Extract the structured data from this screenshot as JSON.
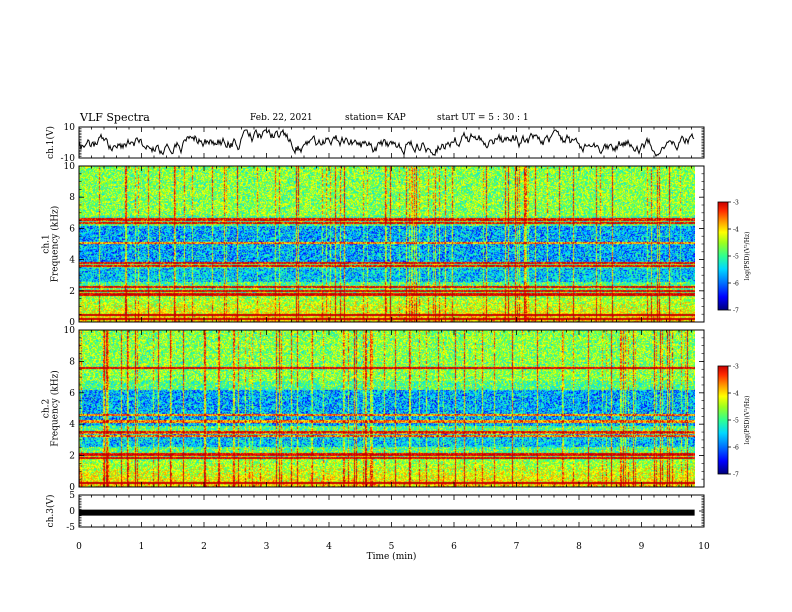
{
  "header": {
    "title": "VLF Spectra",
    "date": "Feb. 22, 2021",
    "station": "station= KAP",
    "start": "start  UT =  5 : 30 : 1"
  },
  "colors": {
    "colormap": [
      "#00007a",
      "#0000ff",
      "#0070ff",
      "#00d8ff",
      "#30ff90",
      "#9aff20",
      "#ffff00",
      "#ff9a00",
      "#ff2a00",
      "#c80000"
    ],
    "axis": "#000000"
  },
  "chart_data": [
    {
      "type": "line",
      "panel": "ch1-waveform",
      "ylabel": "ch.1(V)",
      "ylim": [
        -10,
        10
      ],
      "yticks": [
        "10",
        "-10"
      ],
      "xlim": [
        0,
        10
      ],
      "series": [
        {
          "values_description_free": true,
          "x_end": 9.85
        }
      ]
    },
    {
      "type": "heatmap",
      "panel": "ch1-spectrogram",
      "ylabel": "ch.1\nFrequency (kHz)",
      "ylabel_line1": "ch.1",
      "ylabel_line2": "Frequency (kHz)",
      "ylim": [
        0,
        10
      ],
      "yticks": [
        "0",
        "2",
        "4",
        "6",
        "8",
        "10"
      ],
      "xlim": [
        0,
        10
      ],
      "x_end": 9.85,
      "bands_khz": [
        0.2,
        0.5,
        1.8,
        2.0,
        2.3,
        3.6,
        3.8,
        5.1,
        6.4,
        6.6
      ],
      "colorbar": {
        "label": "log(PSD)(V²/Hz)",
        "ticks": [
          "-3",
          "-4",
          "-5",
          "-6",
          "-7"
        ],
        "range": [
          -7,
          -3
        ]
      }
    },
    {
      "type": "heatmap",
      "panel": "ch2-spectrogram",
      "ylabel": "ch.2\nFrequency (kHz)",
      "ylabel_line1": "ch.2",
      "ylabel_line2": "Frequency (kHz)",
      "ylim": [
        0,
        10
      ],
      "yticks": [
        "0",
        "2",
        "4",
        "6",
        "8",
        "10"
      ],
      "xlim": [
        0,
        10
      ],
      "x_end": 9.85,
      "bands_khz": [
        0.3,
        1.9,
        2.1,
        3.3,
        3.5,
        4.2,
        4.6,
        7.6
      ],
      "colorbar": {
        "label": "log(PSD)(V²/Hz)",
        "ticks": [
          "-3",
          "-4",
          "-5",
          "-6",
          "-7"
        ],
        "range": [
          -7,
          -3
        ]
      }
    },
    {
      "type": "line",
      "panel": "ch3-waveform",
      "ylabel": "ch.3(V)",
      "ylim": [
        -5,
        5
      ],
      "yticks": [
        "5",
        "0",
        "-5"
      ],
      "xlim": [
        0,
        10
      ],
      "series": [
        {
          "value": -0.5,
          "x_end": 9.85
        }
      ]
    }
  ],
  "xaxis": {
    "label": "Time (min)",
    "ticks": [
      "0",
      "1",
      "2",
      "3",
      "4",
      "5",
      "6",
      "7",
      "8",
      "9",
      "10"
    ]
  }
}
